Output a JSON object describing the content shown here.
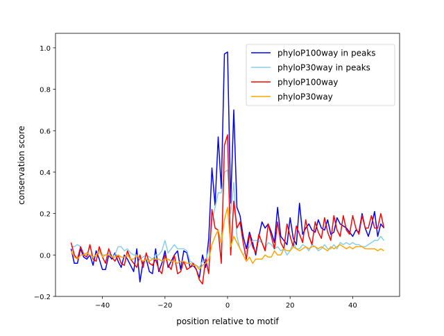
{
  "chart_data": {
    "type": "line",
    "title": "",
    "xlabel": "position relative to motif",
    "ylabel": "conservation score",
    "xlim": [
      -55,
      55
    ],
    "ylim": [
      -0.2,
      1.07
    ],
    "xticks": [
      -40,
      -20,
      0,
      20,
      40
    ],
    "xtick_labels": [
      "−40",
      "−20",
      "0",
      "20",
      "40"
    ],
    "yticks": [
      -0.2,
      0.0,
      0.2,
      0.4,
      0.6,
      0.8,
      1.0
    ],
    "ytick_labels": [
      "−0.2",
      "0.0",
      "0.2",
      "0.4",
      "0.6",
      "0.8",
      "1.0"
    ],
    "grid": false,
    "legend_position": "top-right",
    "x_start": -50,
    "x_end": 50,
    "series": [
      {
        "name": "phyloP100way in peaks",
        "color": "#0000ff",
        "values": [
          0.03,
          -0.04,
          -0.04,
          0.03,
          -0.01,
          -0.02,
          0.0,
          -0.05,
          0.02,
          -0.02,
          -0.07,
          -0.07,
          0.0,
          -0.02,
          0.01,
          -0.03,
          -0.06,
          0.0,
          -0.02,
          -0.05,
          -0.08,
          0.03,
          -0.13,
          -0.03,
          -0.02,
          -0.08,
          -0.09,
          0.03,
          -0.08,
          -0.04,
          0.02,
          -0.06,
          -0.03,
          0.0,
          0.02,
          -0.07,
          0.02,
          0.01,
          -0.06,
          -0.05,
          -0.07,
          -0.11,
          0.0,
          -0.06,
          0.08,
          0.42,
          0.24,
          0.57,
          0.32,
          0.97,
          0.98,
          0.25,
          0.7,
          0.23,
          0.19,
          0.09,
          0.03,
          0.11,
          0.06,
          0.0,
          0.09,
          0.16,
          0.13,
          0.15,
          0.11,
          0.06,
          0.23,
          0.09,
          0.07,
          0.05,
          0.18,
          0.08,
          0.05,
          0.25,
          0.1,
          0.13,
          0.15,
          0.12,
          0.11,
          0.17,
          0.13,
          0.12,
          0.17,
          0.1,
          0.11,
          0.18,
          0.15,
          0.14,
          0.13,
          0.11,
          0.09,
          0.12,
          0.11,
          0.2,
          0.13,
          0.09,
          0.14,
          0.21,
          0.09,
          0.15,
          0.13
        ]
      },
      {
        "name": "phyloP30way in peaks",
        "color": "#87ceeb",
        "values": [
          0.04,
          0.04,
          0.05,
          0.04,
          0.01,
          0.0,
          0.0,
          -0.01,
          0.0,
          0.01,
          0.0,
          0.0,
          0.01,
          -0.01,
          0.0,
          0.04,
          0.04,
          0.02,
          0.03,
          0.01,
          0.0,
          0.0,
          -0.02,
          -0.01,
          0.0,
          -0.01,
          -0.02,
          0.0,
          0.0,
          0.02,
          0.07,
          0.01,
          0.03,
          0.05,
          0.03,
          0.03,
          0.03,
          0.02,
          -0.03,
          -0.04,
          -0.05,
          -0.06,
          -0.03,
          -0.03,
          0.03,
          0.16,
          0.23,
          0.3,
          0.3,
          0.4,
          0.41,
          0.2,
          0.35,
          0.09,
          0.03,
          0.0,
          0.02,
          0.04,
          0.07,
          0.07,
          0.07,
          0.06,
          0.03,
          0.06,
          0.05,
          0.03,
          0.04,
          0.02,
          0.03,
          0.0,
          0.02,
          0.06,
          0.03,
          0.03,
          0.05,
          0.04,
          0.02,
          0.05,
          0.04,
          0.02,
          0.03,
          0.05,
          0.03,
          0.03,
          0.05,
          0.03,
          0.06,
          0.05,
          0.06,
          0.05,
          0.06,
          0.05,
          0.05,
          0.04,
          0.04,
          0.05,
          0.06,
          0.07,
          0.07,
          0.09,
          0.07
        ]
      },
      {
        "name": "phyloP100way",
        "color": "#ff0000",
        "values": [
          0.06,
          0.0,
          -0.02,
          0.04,
          0.0,
          -0.01,
          0.05,
          -0.02,
          -0.03,
          0.04,
          -0.01,
          -0.04,
          0.03,
          -0.01,
          -0.03,
          0.0,
          -0.04,
          -0.05,
          0.02,
          -0.02,
          -0.04,
          -0.06,
          0.0,
          -0.06,
          0.01,
          -0.04,
          -0.05,
          -0.02,
          -0.07,
          -0.09,
          0.0,
          -0.05,
          -0.07,
          0.0,
          -0.09,
          -0.08,
          -0.03,
          -0.07,
          -0.06,
          -0.04,
          -0.07,
          -0.12,
          -0.14,
          -0.02,
          -0.09,
          0.22,
          0.13,
          0.12,
          -0.04,
          0.53,
          0.58,
          0.0,
          0.26,
          0.13,
          0.16,
          0.06,
          -0.02,
          0.1,
          0.04,
          0.01,
          0.1,
          0.06,
          0.02,
          0.15,
          0.09,
          0.03,
          0.16,
          0.06,
          0.03,
          0.15,
          0.09,
          0.04,
          0.14,
          0.1,
          0.06,
          0.17,
          0.09,
          0.05,
          0.16,
          0.11,
          0.08,
          0.18,
          0.11,
          0.07,
          0.19,
          0.12,
          0.09,
          0.19,
          0.12,
          0.1,
          0.19,
          0.13,
          0.1,
          0.19,
          0.13,
          0.13,
          0.19,
          0.13,
          0.13,
          0.2,
          0.13
        ]
      },
      {
        "name": "phyloP30way",
        "color": "#ffa500",
        "values": [
          0.02,
          -0.01,
          -0.02,
          0.0,
          0.0,
          0.01,
          0.0,
          -0.01,
          0.0,
          0.02,
          -0.01,
          0.0,
          0.0,
          -0.01,
          -0.01,
          0.0,
          -0.01,
          -0.01,
          0.0,
          -0.02,
          -0.02,
          0.0,
          -0.02,
          -0.03,
          -0.02,
          -0.03,
          -0.02,
          -0.02,
          -0.02,
          -0.03,
          -0.02,
          -0.02,
          -0.03,
          -0.03,
          -0.04,
          -0.03,
          -0.03,
          -0.04,
          -0.04,
          -0.05,
          -0.05,
          -0.07,
          -0.05,
          -0.04,
          -0.02,
          0.05,
          0.09,
          0.12,
          0.06,
          0.17,
          0.23,
          0.04,
          0.09,
          0.06,
          0.03,
          0.0,
          -0.03,
          -0.01,
          -0.04,
          -0.02,
          -0.02,
          -0.02,
          0.0,
          -0.01,
          -0.01,
          0.02,
          0.0,
          0.0,
          0.03,
          0.02,
          0.02,
          0.04,
          0.03,
          0.02,
          0.03,
          0.04,
          0.03,
          0.04,
          0.04,
          0.03,
          0.04,
          0.03,
          0.02,
          0.04,
          0.03,
          0.04,
          0.05,
          0.04,
          0.03,
          0.04,
          0.03,
          0.04,
          0.04,
          0.04,
          0.03,
          0.03,
          0.03,
          0.03,
          0.02,
          0.03,
          0.02
        ]
      }
    ]
  }
}
